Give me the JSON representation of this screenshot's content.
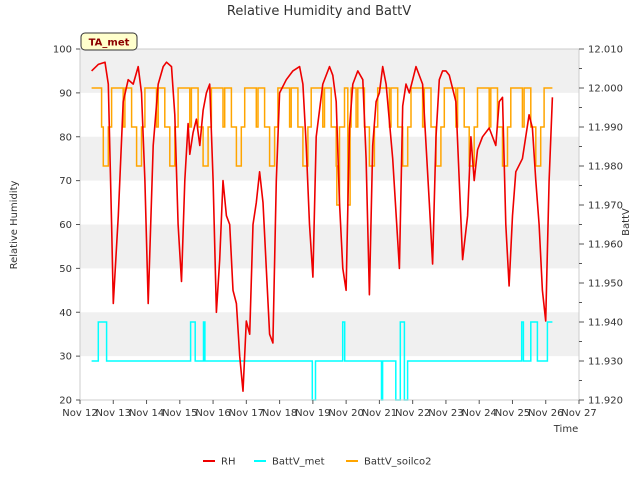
{
  "chart_data": {
    "type": "line",
    "title": "Relative Humidity and BattV",
    "site_label": "TA_met",
    "xlabel": "Time",
    "ylabel_left": "Relative Humidity",
    "ylabel_right": "BattV",
    "x_ticks": [
      "Nov 12",
      "Nov 13",
      "Nov 14",
      "Nov 15",
      "Nov 16",
      "Nov 17",
      "Nov 18",
      "Nov 19",
      "Nov 20",
      "Nov 21",
      "Nov 22",
      "Nov 23",
      "Nov 24",
      "Nov 25",
      "Nov 26",
      "Nov 27"
    ],
    "xlim": [
      12,
      27
    ],
    "ylim_left": [
      20,
      100
    ],
    "ylim_right": [
      11.92,
      12.01
    ],
    "y_left_ticks": [
      20,
      30,
      40,
      50,
      60,
      70,
      80,
      90,
      100
    ],
    "y_right_ticks": [
      "11.920",
      "11.930",
      "11.940",
      "11.950",
      "11.960",
      "11.970",
      "11.980",
      "11.990",
      "12.000",
      "12.010"
    ],
    "grid": "horizontal bands",
    "legend_position": "bottom-center",
    "series": [
      {
        "name": "RH",
        "axis": "left",
        "color": "#ee0000",
        "x": [
          12.35,
          12.55,
          12.75,
          12.85,
          12.95,
          13.0,
          13.15,
          13.3,
          13.45,
          13.6,
          13.75,
          13.85,
          13.95,
          14.05,
          14.2,
          14.35,
          14.5,
          14.6,
          14.75,
          14.85,
          14.95,
          15.05,
          15.15,
          15.25,
          15.3,
          15.4,
          15.5,
          15.6,
          15.7,
          15.8,
          15.9,
          16.0,
          16.1,
          16.2,
          16.3,
          16.4,
          16.5,
          16.6,
          16.7,
          16.8,
          16.9,
          17.0,
          17.1,
          17.2,
          17.3,
          17.4,
          17.5,
          17.6,
          17.7,
          17.8,
          17.9,
          18.0,
          18.2,
          18.4,
          18.6,
          18.7,
          18.8,
          18.9,
          19.0,
          19.1,
          19.3,
          19.5,
          19.6,
          19.7,
          19.8,
          19.9,
          20.0,
          20.1,
          20.2,
          20.35,
          20.5,
          20.6,
          20.7,
          20.8,
          20.9,
          21.0,
          21.1,
          21.2,
          21.4,
          21.6,
          21.7,
          21.8,
          21.9,
          22.0,
          22.1,
          22.3,
          22.5,
          22.6,
          22.7,
          22.8,
          22.9,
          23.0,
          23.1,
          23.3,
          23.5,
          23.65,
          23.75,
          23.85,
          23.95,
          24.1,
          24.3,
          24.5,
          24.6,
          24.7,
          24.8,
          24.9,
          25.0,
          25.1,
          25.3,
          25.5,
          25.6,
          25.7,
          25.8,
          25.9,
          26.0,
          26.1,
          26.2
        ],
        "values": [
          95,
          96.5,
          97,
          92,
          60,
          42,
          62,
          88,
          93,
          92,
          96,
          90,
          70,
          42,
          78,
          92,
          96,
          97,
          96,
          85,
          60,
          47,
          70,
          83,
          76,
          81,
          84,
          78,
          86,
          90,
          92,
          70,
          40,
          52,
          70,
          62,
          60,
          45,
          42,
          30,
          22,
          38,
          35,
          60,
          65,
          72,
          65,
          50,
          35,
          33,
          70,
          90,
          93,
          95,
          96,
          92,
          78,
          60,
          48,
          80,
          92,
          96,
          94,
          88,
          65,
          50,
          45,
          82,
          92,
          95,
          93,
          75,
          44,
          78,
          88,
          90,
          96,
          92,
          75,
          50,
          87,
          92,
          90,
          93,
          96,
          92,
          65,
          51,
          80,
          93,
          95,
          95,
          94,
          88,
          52,
          62,
          80,
          70,
          77,
          80,
          82,
          78,
          88,
          89,
          60,
          46,
          62,
          72,
          75,
          85,
          82,
          70,
          60,
          45,
          38,
          70,
          89
        ]
      },
      {
        "name": "BattV_met",
        "axis": "right",
        "color": "#00ffff",
        "levels": [
          11.92,
          11.93,
          11.94
        ]
      },
      {
        "name": "BattV_soilco2",
        "axis": "right",
        "color": "#ffa500",
        "levels": [
          11.97,
          11.98,
          11.99,
          12.0
        ]
      }
    ]
  }
}
